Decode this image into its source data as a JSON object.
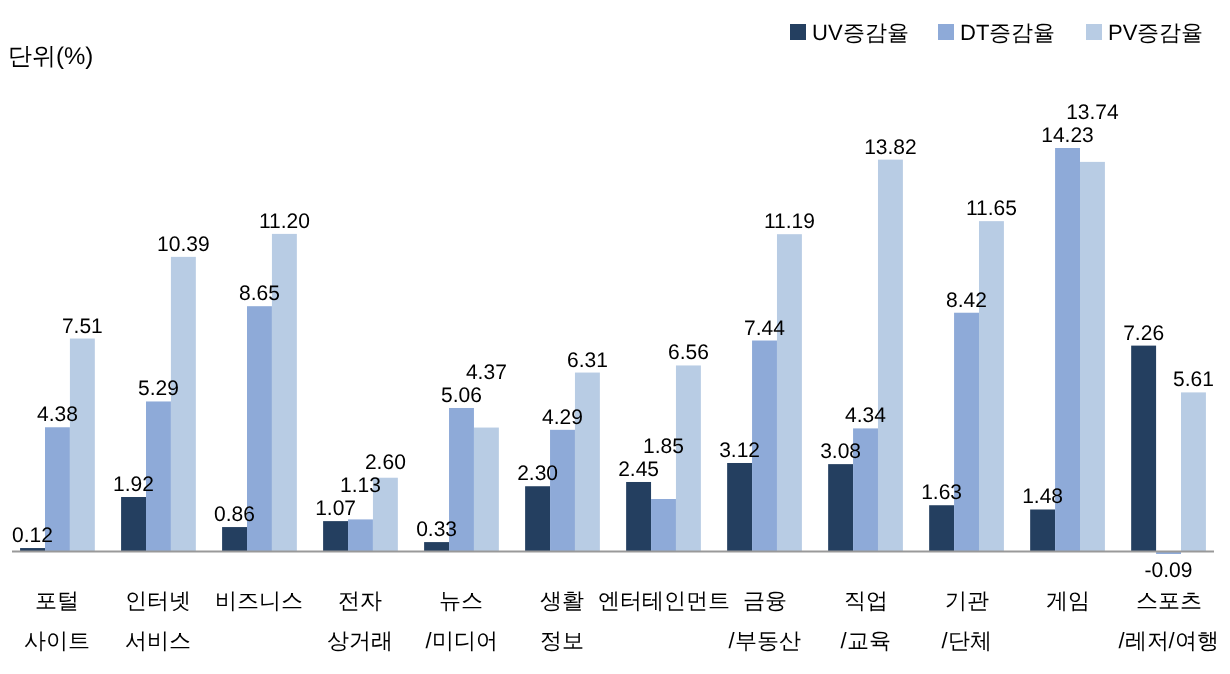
{
  "chart_data": {
    "type": "bar",
    "ylabel": "단위(%)",
    "legend": "top right",
    "categories": [
      "포털\n사이트",
      "인터넷\n서비스",
      "비즈니스",
      "전자\n상거래",
      "뉴스\n/미디어",
      "생활\n정보",
      "엔터테인먼트",
      "금융\n/부동산",
      "직업\n/교육",
      "기관\n/단체",
      "게임",
      "스포츠\n/레저/여행"
    ],
    "series": [
      {
        "name": "UV증감율",
        "color": "#243f60",
        "values": [
          0.12,
          1.92,
          0.86,
          1.07,
          0.33,
          2.3,
          2.45,
          3.12,
          3.08,
          1.63,
          1.48,
          7.26
        ],
        "value_labels": [
          "0.12",
          "1.92",
          "0.86",
          "1.07",
          "0.33",
          "2.30",
          "2.45",
          "3.12",
          "3.08",
          "1.63",
          "1.48",
          "7.26"
        ]
      },
      {
        "name": "DT증감율",
        "color": "#8eaad8",
        "values": [
          4.38,
          5.29,
          8.65,
          1.13,
          5.06,
          4.29,
          1.85,
          7.44,
          4.34,
          8.42,
          14.23,
          -0.09
        ],
        "value_labels": [
          "4.38",
          "5.29",
          "8.65",
          "1.13",
          "5.06",
          "4.29",
          "1.85",
          "7.44",
          "4.34",
          "8.42",
          "14.23",
          "-0.09"
        ]
      },
      {
        "name": "PV증감율",
        "color": "#b8cce4",
        "values": [
          7.51,
          10.39,
          11.2,
          2.6,
          4.37,
          6.31,
          6.56,
          11.19,
          13.82,
          11.65,
          13.74,
          5.61
        ],
        "value_labels": [
          "7.51",
          "10.39",
          "11.20",
          "2.60",
          "4.37",
          "6.31",
          "6.56",
          "11.19",
          "13.82",
          "11.65",
          "13.74",
          "5.61"
        ]
      }
    ]
  }
}
